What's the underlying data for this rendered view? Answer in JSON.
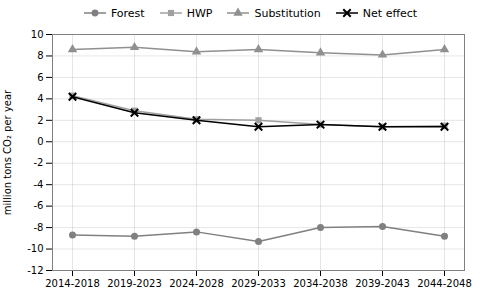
{
  "chart_data": {
    "type": "line",
    "categories": [
      "2014-2018",
      "2019-2023",
      "2024-2028",
      "2029-2033",
      "2034-2038",
      "2039-2043",
      "2044-2048"
    ],
    "series": [
      {
        "name": "Forest",
        "color": "#808080",
        "marker": "circle",
        "values": [
          -8.7,
          -8.8,
          -8.4,
          -9.3,
          -8.0,
          -7.9,
          -8.8
        ]
      },
      {
        "name": "HWP",
        "color": "#a0a0a0",
        "marker": "square",
        "values": [
          4.3,
          2.9,
          2.1,
          2.0,
          1.6,
          1.4,
          1.5
        ]
      },
      {
        "name": "Substitution",
        "color": "#909090",
        "marker": "triangle",
        "values": [
          8.6,
          8.8,
          8.4,
          8.6,
          8.3,
          8.1,
          8.6
        ]
      },
      {
        "name": "Net effect",
        "color": "#000000",
        "marker": "x",
        "values": [
          4.2,
          2.7,
          2.0,
          1.4,
          1.6,
          1.4,
          1.4
        ]
      }
    ],
    "ylabel": "million tons CO₂ per year",
    "ylim": [
      -12,
      10
    ],
    "yticks": [
      -12,
      -10,
      -8,
      -6,
      -4,
      -2,
      0,
      2,
      4,
      6,
      8,
      10
    ],
    "grid": true,
    "legend": "top"
  }
}
